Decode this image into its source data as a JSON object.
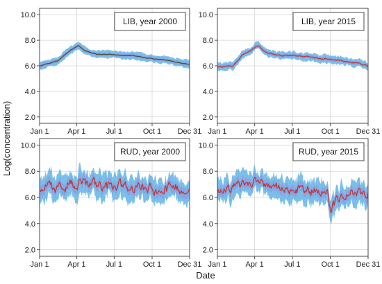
{
  "figure": {
    "ylabel": "Log(concentration)",
    "xlabel": "Date"
  },
  "chart_data": [
    {
      "type": "area",
      "title": "LIB, year 2000",
      "x_ticks": [
        "Jan 1",
        "Apr 1",
        "Jul 1",
        "Oct 1",
        "Dec 31"
      ],
      "y_ticks": [
        "2.0",
        "4.0",
        "6.0",
        "8.0",
        "10.0"
      ],
      "xlim": [
        1,
        365
      ],
      "ylim": [
        1.5,
        10.5
      ],
      "grid": true,
      "series": [
        {
          "values": [
            [
              1,
              6.0
            ],
            [
              45,
              6.4
            ],
            [
              75,
              7.2
            ],
            [
              95,
              7.6
            ],
            [
              110,
              7.2
            ],
            [
              140,
              6.9
            ],
            [
              175,
              6.9
            ],
            [
              200,
              6.8
            ],
            [
              230,
              6.8
            ],
            [
              260,
              6.6
            ],
            [
              300,
              6.5
            ],
            [
              330,
              6.3
            ],
            [
              365,
              6.1
            ]
          ]
        }
      ],
      "band": {
        "halfwidth": 0.3,
        "noise": 0.06
      },
      "line_noise": 0.02,
      "line_color": "#4e4e3a",
      "seed": 11
    },
    {
      "type": "area",
      "title": "LIB, year 2015",
      "x_ticks": [
        "Jan 1",
        "Apr 1",
        "Jul 1",
        "Oct 1",
        "Dec 31"
      ],
      "y_ticks": [
        "2.0",
        "4.0",
        "6.0",
        "8.0",
        "10.0"
      ],
      "xlim": [
        1,
        365
      ],
      "ylim": [
        1.5,
        10.5
      ],
      "grid": true,
      "series": [
        {
          "values": [
            [
              1,
              5.9
            ],
            [
              40,
              6.0
            ],
            [
              60,
              6.8
            ],
            [
              90,
              7.4
            ],
            [
              100,
              7.6
            ],
            [
              115,
              7.1
            ],
            [
              150,
              6.8
            ],
            [
              200,
              6.8
            ],
            [
              240,
              6.6
            ],
            [
              300,
              6.4
            ],
            [
              340,
              6.2
            ],
            [
              365,
              6.0
            ]
          ]
        }
      ],
      "band": {
        "halfwidth": 0.3,
        "noise": 0.08
      },
      "line_noise": 0.04,
      "line_color": "#c0393b",
      "seed": 29
    },
    {
      "type": "area",
      "title": "RUD, year 2000",
      "x_ticks": [
        "Jan 1",
        "Apr 1",
        "Jul 1",
        "Oct 1",
        "Dec 31"
      ],
      "y_ticks": [
        "2.0",
        "4.0",
        "6.0",
        "8.0",
        "10.0"
      ],
      "xlim": [
        1,
        365
      ],
      "ylim": [
        1.5,
        10.5
      ],
      "grid": true,
      "series": [
        {
          "values": [
            [
              1,
              6.6
            ],
            [
              60,
              6.9
            ],
            [
              90,
              7.2
            ],
            [
              120,
              7.0
            ],
            [
              180,
              6.9
            ],
            [
              240,
              6.7
            ],
            [
              290,
              6.6
            ],
            [
              330,
              6.8
            ],
            [
              365,
              6.7
            ]
          ]
        }
      ],
      "band": {
        "halfwidth": 0.9,
        "noise": 0.25
      },
      "line_noise": 0.35,
      "line_color": "#c0393b",
      "seed": 47
    },
    {
      "type": "area",
      "title": "RUD, year 2015",
      "x_ticks": [
        "Jan 1",
        "Apr 1",
        "Jul 1",
        "Oct 1",
        "Dec 31"
      ],
      "y_ticks": [
        "2.0",
        "4.0",
        "6.0",
        "8.0",
        "10.0"
      ],
      "xlim": [
        1,
        365
      ],
      "ylim": [
        1.5,
        10.5
      ],
      "grid": true,
      "series": [
        {
          "values": [
            [
              1,
              6.5
            ],
            [
              30,
              6.8
            ],
            [
              90,
              7.2
            ],
            [
              150,
              6.9
            ],
            [
              240,
              6.4
            ],
            [
              268,
              6.3
            ],
            [
              275,
              5.0
            ],
            [
              285,
              5.6
            ],
            [
              320,
              6.3
            ],
            [
              365,
              6.4
            ]
          ]
        }
      ],
      "band": {
        "halfwidth": 0.85,
        "noise": 0.25
      },
      "line_noise": 0.3,
      "line_color": "#c0393b",
      "seed": 83
    }
  ]
}
